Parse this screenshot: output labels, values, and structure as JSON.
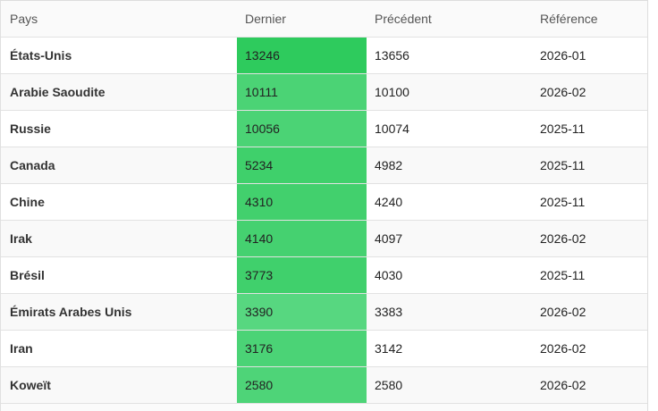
{
  "table": {
    "columns": [
      {
        "key": "pays",
        "label": "Pays"
      },
      {
        "key": "dernier",
        "label": "Dernier"
      },
      {
        "key": "precedent",
        "label": "Précédent"
      },
      {
        "key": "reference",
        "label": "Référence"
      }
    ],
    "rows": [
      {
        "pays": "États-Unis",
        "dernier": "13246",
        "precedent": "13656",
        "reference": "2026-01",
        "dernier_color": "#2ecb5d"
      },
      {
        "pays": "Arabie Saoudite",
        "dernier": "10111",
        "precedent": "10100",
        "reference": "2026-02",
        "dernier_color": "#4bd375"
      },
      {
        "pays": "Russie",
        "dernier": "10056",
        "precedent": "10074",
        "reference": "2025-11",
        "dernier_color": "#4bd375"
      },
      {
        "pays": "Canada",
        "dernier": "5234",
        "precedent": "4982",
        "reference": "2025-11",
        "dernier_color": "#3fd06b"
      },
      {
        "pays": "Chine",
        "dernier": "4310",
        "precedent": "4240",
        "reference": "2025-11",
        "dernier_color": "#42d06d"
      },
      {
        "pays": "Irak",
        "dernier": "4140",
        "precedent": "4097",
        "reference": "2026-02",
        "dernier_color": "#45d170"
      },
      {
        "pays": "Brésil",
        "dernier": "3773",
        "precedent": "4030",
        "reference": "2025-11",
        "dernier_color": "#40d06c"
      },
      {
        "pays": "Émirats Arabes Unis",
        "dernier": "3390",
        "precedent": "3383",
        "reference": "2026-02",
        "dernier_color": "#57d780"
      },
      {
        "pays": "Iran",
        "dernier": "3176",
        "precedent": "3142",
        "reference": "2026-02",
        "dernier_color": "#4bd376"
      },
      {
        "pays": "Koweït",
        "dernier": "2580",
        "precedent": "2580",
        "reference": "2026-02",
        "dernier_color": "#4ed478"
      }
    ]
  },
  "colors": {
    "border": "#dddddd",
    "header_bg": "#fafafa",
    "row_odd_bg": "#ffffff",
    "row_even_bg": "#f9f9f9",
    "header_text": "#555555",
    "country_text": "#333333",
    "cell_text": "#222222",
    "accent_green_dark": "#2ecb5d",
    "accent_green_light": "#57d780"
  }
}
